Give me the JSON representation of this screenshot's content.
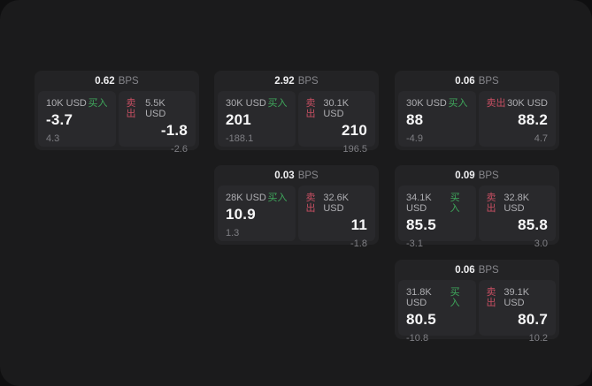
{
  "labels": {
    "buy": "买入",
    "sell": "卖出",
    "bps_unit": "BPS"
  },
  "colors": {
    "buy_green": "#3fa85c",
    "sell_red": "#c74f62",
    "page_background": "#0f0f10",
    "surface": "#1b1b1c",
    "card": "#232325",
    "panel": "#29292c"
  },
  "columns": [
    {
      "cards": [
        {
          "spread": "0.62",
          "buy": {
            "amount": "10K USD",
            "price": "-3.7",
            "delta": "4.3"
          },
          "sell": {
            "amount": "5.5K USD",
            "price": "-1.8",
            "delta": "-2.6"
          }
        }
      ]
    },
    {
      "cards": [
        {
          "spread": "2.92",
          "buy": {
            "amount": "30K USD",
            "price": "201",
            "delta": "-188.1"
          },
          "sell": {
            "amount": "30.1K USD",
            "price": "210",
            "delta": "196.5"
          }
        },
        {
          "spread": "0.03",
          "buy": {
            "amount": "28K USD",
            "price": "10.9",
            "delta": "1.3"
          },
          "sell": {
            "amount": "32.6K USD",
            "price": "11",
            "delta": "-1.8"
          }
        }
      ]
    },
    {
      "cards": [
        {
          "spread": "0.06",
          "buy": {
            "amount": "30K USD",
            "price": "88",
            "delta": "-4.9"
          },
          "sell": {
            "amount": "30K USD",
            "price": "88.2",
            "delta": "4.7"
          }
        },
        {
          "spread": "0.09",
          "buy": {
            "amount": "34.1K USD",
            "price": "85.5",
            "delta": "-3.1"
          },
          "sell": {
            "amount": "32.8K USD",
            "price": "85.8",
            "delta": "3.0"
          }
        },
        {
          "spread": "0.06",
          "buy": {
            "amount": "31.8K USD",
            "price": "80.5",
            "delta": "-10.8"
          },
          "sell": {
            "amount": "39.1K USD",
            "price": "80.7",
            "delta": "10.2"
          }
        }
      ]
    }
  ]
}
